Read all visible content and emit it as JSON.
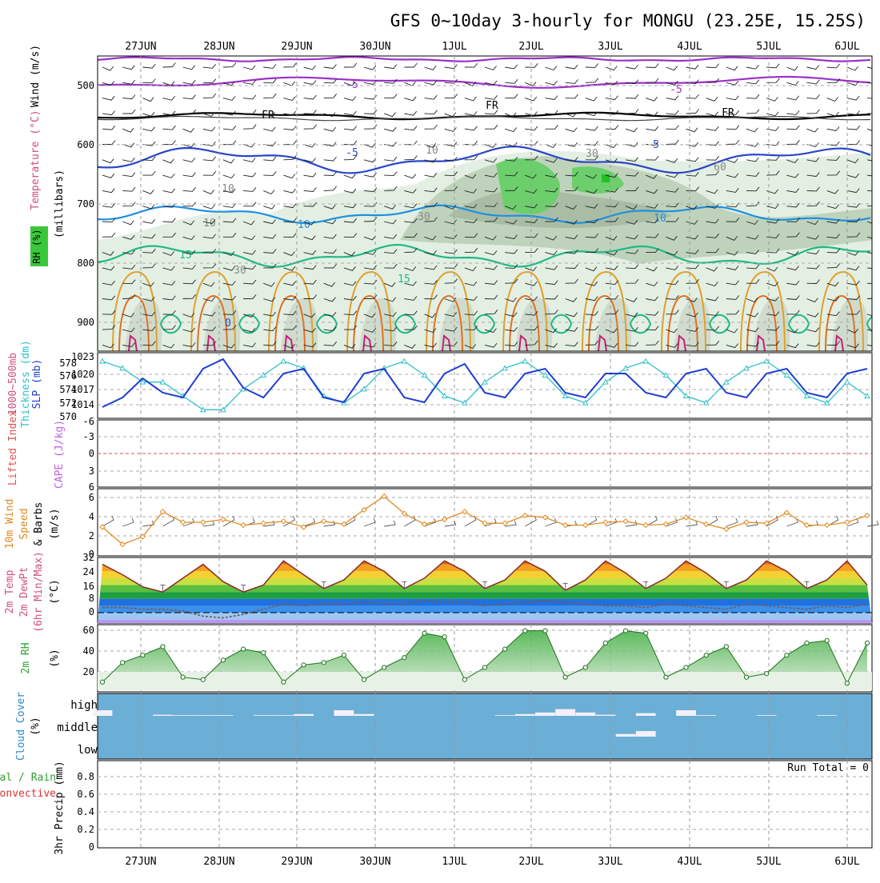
{
  "title": "GFS 0~10day 3-hourly for MONGU (23.25E, 15.25S)",
  "dates": [
    "27JUN",
    "28JUN",
    "29JUN",
    "30JUN",
    "1JUL",
    "2JUL",
    "3JUL",
    "4JUL",
    "5JUL",
    "6JUL"
  ],
  "panels": {
    "upper": {
      "ylabel_wind": "Wind (m/s)",
      "ylabel_temp": "Temperature (°C)",
      "ylabel_rh": "RH (%)",
      "ylabel_p": "(millibars)",
      "pressure_ticks": [
        "500",
        "600",
        "700",
        "800",
        "900"
      ],
      "contour_labels": [
        "-5",
        "-5",
        "FR",
        "FR",
        "FR",
        "-5",
        "5",
        "10",
        "10",
        "15",
        "15",
        "10",
        "10",
        "30",
        "30",
        "30",
        "60",
        "10",
        "30",
        "0"
      ]
    },
    "slp": {
      "ylabel_thick": "Thickness (dm)",
      "ylabel_thick2": "1000~500mb",
      "ylabel_slp": "SLP (mb)",
      "ticks_left": [
        "578",
        "576",
        "574",
        "572",
        "570"
      ],
      "ticks_right": [
        "1023",
        "1020",
        "1017",
        "1014"
      ]
    },
    "li": {
      "ylabel_li": "Lifted Index",
      "ylabel_cape": "CAPE (J/kg)",
      "ticks": [
        "-3",
        "0",
        "3",
        "6"
      ],
      "top_tick": "-6"
    },
    "wind10": {
      "ylabel1": "10m Wind",
      "ylabel2": "Speed",
      "ylabel3": "& Barbs",
      "ylabel4": "(m/s)",
      "ticks": [
        "6",
        "4",
        "2"
      ],
      "bottom_tick": "0"
    },
    "temp": {
      "ylabel1": "2m Temp",
      "ylabel2": "2m DewPt",
      "ylabel3": "(6hr Min/Max)",
      "ylabel4": "(°C)",
      "ticks": [
        "32",
        "24",
        "16",
        "8",
        "0"
      ]
    },
    "rh": {
      "ylabel1": "2m RH",
      "ylabel2": "(%)",
      "ticks": [
        "60",
        "40",
        "20"
      ]
    },
    "cloud": {
      "ylabel1": "Cloud Cover",
      "ylabel2": "(%)",
      "levels": [
        "high",
        "middle",
        "low"
      ]
    },
    "precip": {
      "ylabel1": "3hr Precip (mm)",
      "ylabel2": "Total / Rain",
      "ylabel3": "Convective",
      "run_total": "Run Total = 0",
      "ticks": [
        "0.8",
        "0.6",
        "0.4",
        "0.2",
        "0"
      ]
    }
  },
  "chart_data": [
    {
      "type": "line",
      "name": "SLP",
      "x": [
        "26JUN18",
        "27JUN00",
        "27JUN06",
        "27JUN12",
        "27JUN18",
        "28JUN00",
        "28JUN06",
        "28JUN12",
        "28JUN18",
        "29JUN00",
        "29JUN06",
        "29JUN12",
        "29JUN18",
        "30JUN00",
        "30JUN06",
        "30JUN12",
        "30JUN18",
        "1JUL00",
        "1JUL06",
        "1JUL12",
        "1JUL18",
        "2JUL00",
        "2JUL06",
        "2JUL12",
        "2JUL18",
        "3JUL00",
        "3JUL06",
        "3JUL12",
        "3JUL18",
        "4JUL00",
        "4JUL06",
        "4JUL12",
        "4JUL18",
        "5JUL00",
        "5JUL06",
        "5JUL12",
        "5JUL18",
        "6JUL00",
        "6JUL06"
      ],
      "values": [
        1013,
        1015,
        1019,
        1016,
        1015,
        1021,
        1023,
        1017,
        1015,
        1020,
        1021,
        1015,
        1014,
        1020,
        1021,
        1015,
        1014,
        1020,
        1022,
        1016,
        1015,
        1020,
        1021,
        1016,
        1015,
        1020,
        1020,
        1016,
        1015,
        1020,
        1021,
        1016,
        1015,
        1020,
        1021,
        1016,
        1015,
        1020,
        1021
      ],
      "ylim": [
        1011,
        1024
      ],
      "color": "#1f3fd0"
    },
    {
      "type": "line",
      "name": "Thickness",
      "x_ref": "same as SLP",
      "values": [
        578,
        577,
        575,
        575,
        573,
        571,
        571,
        574,
        576,
        578,
        577,
        573,
        572,
        574,
        577,
        578,
        576,
        573,
        572,
        575,
        577,
        578,
        576,
        573,
        572,
        575,
        577,
        578,
        576,
        573,
        572,
        575,
        577,
        578,
        576,
        573,
        572,
        575,
        573
      ],
      "ylim": [
        570,
        579
      ],
      "color": "#30c0c8"
    },
    {
      "type": "line",
      "name": "10m Wind Speed",
      "values": [
        3.0,
        1.2,
        2.0,
        4.6,
        3.5,
        3.5,
        3.8,
        3.2,
        3.4,
        3.6,
        3.0,
        3.6,
        3.3,
        4.8,
        6.2,
        4.4,
        3.3,
        3.8,
        4.6,
        3.4,
        3.4,
        4.2,
        4.0,
        3.2,
        3.2,
        3.5,
        3.6,
        3.2,
        3.3,
        4.0,
        3.3,
        2.8,
        3.5,
        3.4,
        4.5,
        3.2,
        3.2,
        3.5,
        4.2
      ],
      "ylim": [
        0,
        7
      ],
      "color": "#e08a20"
    },
    {
      "type": "area",
      "name": "2m Temp",
      "values": [
        28,
        22,
        15,
        12,
        20,
        28,
        18,
        12,
        16,
        30,
        22,
        14,
        19,
        30,
        24,
        14,
        20,
        30,
        24,
        14,
        19,
        30,
        24,
        13,
        19,
        30,
        23,
        14,
        20,
        30,
        23,
        14,
        19,
        30,
        24,
        14,
        19,
        30,
        16
      ],
      "ylim": [
        -6,
        32
      ]
    },
    {
      "type": "line",
      "name": "2m DewPt",
      "values": [
        3,
        3,
        2,
        2,
        1,
        -2,
        -3,
        -1,
        2,
        5,
        4,
        5,
        5,
        6,
        5,
        5,
        7,
        6,
        6,
        4,
        5,
        6,
        7,
        6,
        5,
        4,
        4,
        3,
        5,
        4,
        3,
        2,
        5,
        4,
        3,
        2,
        4,
        3,
        5
      ],
      "ylim": [
        -6,
        32
      ],
      "color": "#7a5a4a"
    },
    {
      "type": "area",
      "name": "2m RH",
      "values": [
        18,
        34,
        40,
        47,
        22,
        20,
        36,
        45,
        42,
        18,
        32,
        34,
        40,
        20,
        30,
        38,
        58,
        55,
        20,
        30,
        45,
        60,
        60,
        22,
        30,
        50,
        60,
        58,
        22,
        30,
        40,
        47,
        22,
        25,
        40,
        50,
        52,
        17,
        50
      ],
      "ylim": [
        10,
        65
      ],
      "color": "#40b040"
    },
    {
      "type": "bar",
      "name": "Cloud Cover",
      "levels": [
        "high",
        "middle",
        "low"
      ],
      "values_high": [
        25,
        0,
        0,
        5,
        3,
        3,
        3,
        0,
        3,
        3,
        8,
        0,
        25,
        8,
        0,
        0,
        0,
        0,
        0,
        0,
        3,
        8,
        15,
        30,
        15,
        5,
        0,
        12,
        0,
        25,
        3,
        0,
        0,
        3,
        0,
        0,
        3,
        0,
        0
      ],
      "values_middle": [
        0,
        0,
        0,
        0,
        0,
        0,
        0,
        0,
        0,
        0,
        0,
        0,
        0,
        0,
        0,
        0,
        0,
        0,
        0,
        0,
        0,
        0,
        0,
        0,
        0,
        0,
        12,
        25,
        0,
        0,
        0,
        0,
        0,
        0,
        0,
        0,
        0,
        0,
        0
      ]
    },
    {
      "type": "bar",
      "name": "3hr Precip",
      "values": [
        0,
        0,
        0,
        0,
        0,
        0,
        0,
        0,
        0,
        0,
        0,
        0,
        0,
        0,
        0,
        0,
        0,
        0,
        0,
        0,
        0,
        0,
        0,
        0,
        0,
        0,
        0,
        0,
        0,
        0,
        0,
        0,
        0,
        0,
        0,
        0,
        0,
        0,
        0
      ],
      "ylim": [
        0,
        0.9
      ]
    }
  ]
}
